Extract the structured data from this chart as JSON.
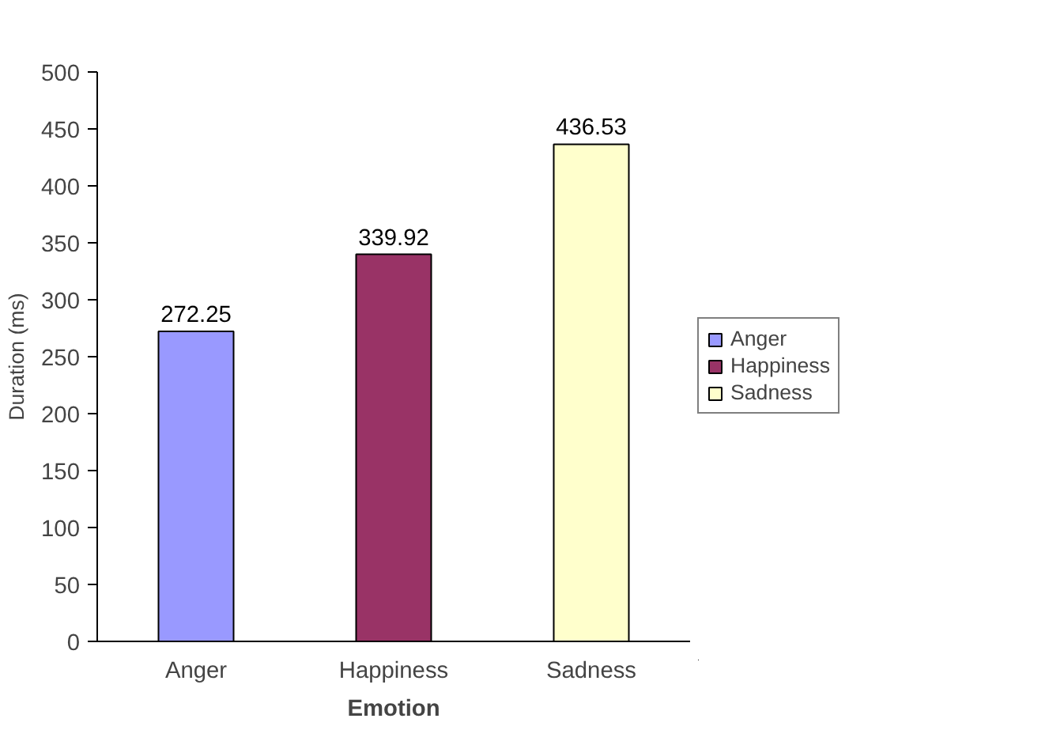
{
  "chart_data": {
    "type": "bar",
    "xlabel": "Emotion",
    "ylabel": "Duration (ms)",
    "categories": [
      "Anger",
      "Happiness",
      "Sadness"
    ],
    "series": [
      {
        "name": "Anger",
        "color": "#9999ff",
        "values": [
          272.25,
          null,
          null
        ]
      },
      {
        "name": "Happiness",
        "color": "#993366",
        "values": [
          null,
          339.92,
          null
        ]
      },
      {
        "name": "Sadness",
        "color": "#ffffcc",
        "values": [
          null,
          null,
          436.53
        ]
      }
    ],
    "ylim": [
      0,
      500
    ],
    "yticks": [
      0,
      50,
      100,
      150,
      200,
      250,
      300,
      350,
      400,
      450,
      500
    ],
    "grid": false,
    "legend": "right",
    "data_labels": true
  }
}
